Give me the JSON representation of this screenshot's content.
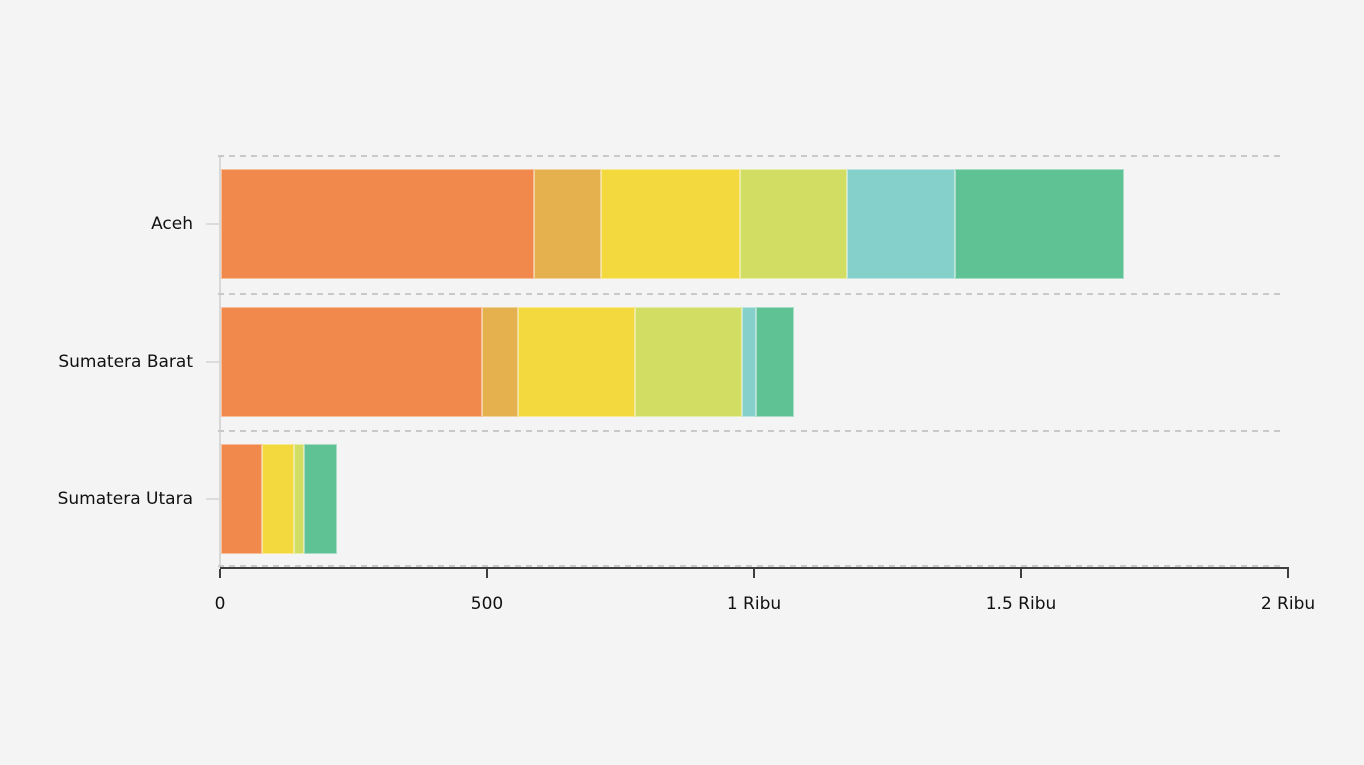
{
  "background_color": "#f4f4f4",
  "chart_data": {
    "type": "bar",
    "orientation": "horizontal",
    "stacked": true,
    "title": "",
    "xlabel": "",
    "ylabel": "",
    "xlim": [
      0,
      2000
    ],
    "grid": "dashed horizontal row separators",
    "legend": "none",
    "categories": [
      "Aceh",
      "Sumatera Barat",
      "Sumatera Utara"
    ],
    "series": [
      {
        "name": "orange",
        "color": "#F1894C",
        "values": [
          586,
          488,
          77
        ]
      },
      {
        "name": "amber",
        "color": "#E5B14E",
        "values": [
          126,
          69,
          0
        ]
      },
      {
        "name": "yellow",
        "color": "#F3D93D",
        "values": [
          259,
          218,
          59
        ]
      },
      {
        "name": "lime",
        "color": "#D2DE63",
        "values": [
          201,
          200,
          19
        ]
      },
      {
        "name": "teal",
        "color": "#86D0CB",
        "values": [
          203,
          27,
          0
        ]
      },
      {
        "name": "green",
        "color": "#5FC295",
        "values": [
          316,
          72,
          62
        ]
      }
    ],
    "category_totals": [
      1691,
      1074,
      217
    ],
    "x_ticks": [
      {
        "value": 0,
        "label": "0"
      },
      {
        "value": 500,
        "label": "500"
      },
      {
        "value": 1000,
        "label": "1 Ribu"
      },
      {
        "value": 1500,
        "label": "1.5 Ribu"
      },
      {
        "value": 2000,
        "label": "2 Ribu"
      }
    ]
  },
  "style_colors": {
    "separator": "#c9c9c9",
    "y_axis": "#d8d8d8",
    "x_axis": "#3f3f3f",
    "text": "#111111"
  }
}
